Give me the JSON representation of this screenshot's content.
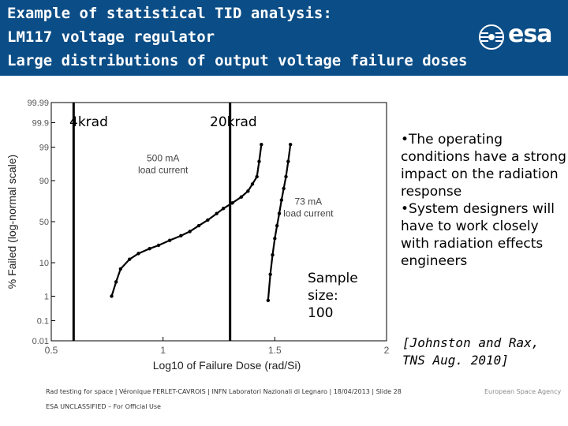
{
  "slide": {
    "title_lines": [
      "Example of statistical TID analysis:",
      "LM117 voltage regulator",
      "Large distributions of output voltage failure doses"
    ],
    "logo_text": "esa",
    "labels": {
      "left_dose": "4krad",
      "right_dose": "20krad",
      "sample_size": [
        "Sample",
        "size:",
        "100"
      ]
    },
    "bullets": [
      "•The operating conditions have a strong impact on the radiation response",
      "•System designers will have to work closely with radiation effects engineers"
    ],
    "reference": [
      "[Johnston and Rax,",
      "TNS Aug. 2010]"
    ],
    "footer": "Rad testing for space | Véronique FERLET-CAVROIS | INFN Laboratori Nazionali di Legnaro | 18/04/2013 | Slide  28",
    "classification": "ESA UNCLASSIFIED – For Official Use",
    "agency": "European Space Agency",
    "colors": {
      "header": "#0b4d86",
      "text": "#000000"
    }
  },
  "chart_data": {
    "type": "scatter",
    "title": "",
    "xlabel": "Log10 of Failure Dose (rad/Si)",
    "ylabel": "% Failed (log-normal scale)",
    "xlim": [
      0.5,
      2
    ],
    "x_ticks": [
      "0.5",
      "1",
      "1.5",
      "2"
    ],
    "y_ticks": [
      "99.99",
      "99.9",
      "99",
      "90",
      "50",
      "10",
      "1",
      "0.1",
      "0.01"
    ],
    "y_scale": "probit",
    "vertical_lines": [
      {
        "x": 0.6,
        "label": "4krad"
      },
      {
        "x": 1.3,
        "label": "20krad"
      }
    ],
    "series": [
      {
        "name": "500 mA load current",
        "points": [
          [
            0.77,
            1
          ],
          [
            0.79,
            3
          ],
          [
            0.81,
            7
          ],
          [
            0.85,
            12
          ],
          [
            0.89,
            16
          ],
          [
            0.94,
            20
          ],
          [
            0.98,
            23
          ],
          [
            1.03,
            28
          ],
          [
            1.08,
            33
          ],
          [
            1.12,
            38
          ],
          [
            1.16,
            45
          ],
          [
            1.2,
            52
          ],
          [
            1.24,
            60
          ],
          [
            1.27,
            66
          ],
          [
            1.31,
            72
          ],
          [
            1.35,
            78
          ],
          [
            1.38,
            83
          ],
          [
            1.4,
            88
          ],
          [
            1.42,
            92
          ],
          [
            1.43,
            97
          ],
          [
            1.44,
            99.2
          ]
        ]
      },
      {
        "name": "73 mA load current",
        "points": [
          [
            1.47,
            0.7
          ],
          [
            1.48,
            5
          ],
          [
            1.49,
            15
          ],
          [
            1.5,
            30
          ],
          [
            1.51,
            45
          ],
          [
            1.52,
            60
          ],
          [
            1.53,
            75
          ],
          [
            1.54,
            85
          ],
          [
            1.55,
            92
          ],
          [
            1.56,
            97
          ],
          [
            1.57,
            99.2
          ]
        ]
      }
    ]
  }
}
